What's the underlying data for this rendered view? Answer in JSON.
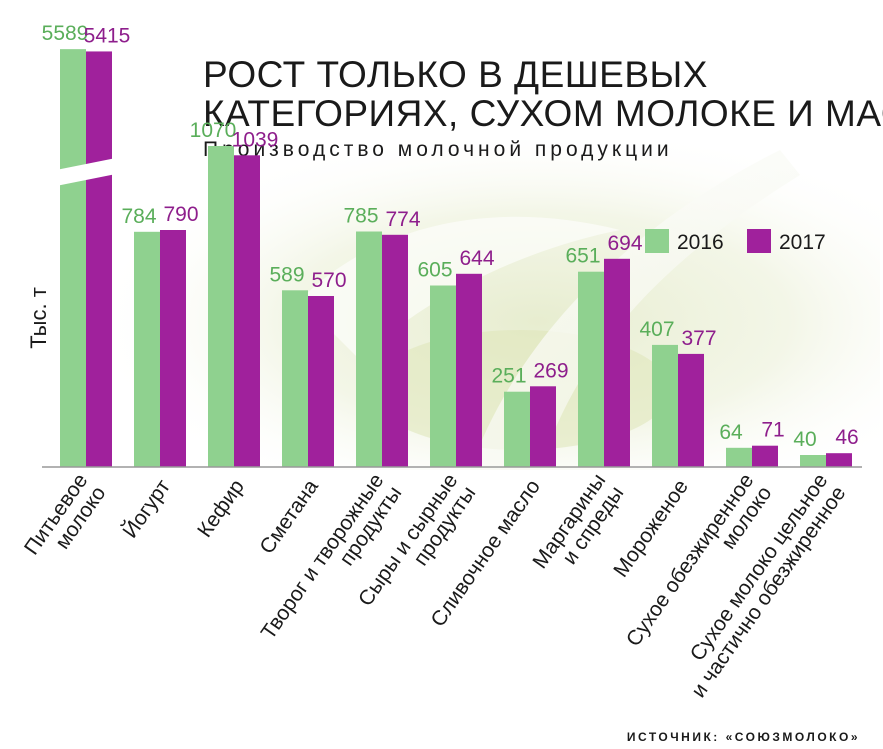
{
  "chart_data": {
    "type": "bar",
    "title": [
      "РОСТ ТОЛЬКО В ДЕШЕВЫХ",
      "КАТЕГОРИЯХ, СУХОМ МОЛОКЕ И МАСЛЕ"
    ],
    "subtitle": "Производство молочной продукции",
    "ylabel": "Тыс. т",
    "source": "ИСТОЧНИК: «СОЮЗМОЛОКО»",
    "axis_break": true,
    "legend_position": "top-right",
    "categories": [
      [
        "Питьевое",
        "молоко"
      ],
      [
        "Йогурт"
      ],
      [
        "Кефир"
      ],
      [
        "Сметана"
      ],
      [
        "Творог и творожные",
        "продукты"
      ],
      [
        "Сыры и сырные",
        "продукты"
      ],
      [
        "Сливочное масло"
      ],
      [
        "Маргарины",
        "и спреды"
      ],
      [
        "Мороженое"
      ],
      [
        "Сухое обезжиренное",
        "молоко"
      ],
      [
        "Сухое молоко цельное",
        "и частично обезжиренное"
      ]
    ],
    "series": [
      {
        "name": "2016",
        "color": "#8fd18f",
        "label_color": "#5aae5a",
        "values": [
          5589,
          784,
          1070,
          589,
          785,
          605,
          251,
          651,
          407,
          64,
          40
        ]
      },
      {
        "name": "2017",
        "color": "#a0219c",
        "label_color": "#8e1e8c",
        "values": [
          5415,
          790,
          1039,
          570,
          774,
          644,
          269,
          694,
          377,
          71,
          46
        ]
      }
    ]
  }
}
